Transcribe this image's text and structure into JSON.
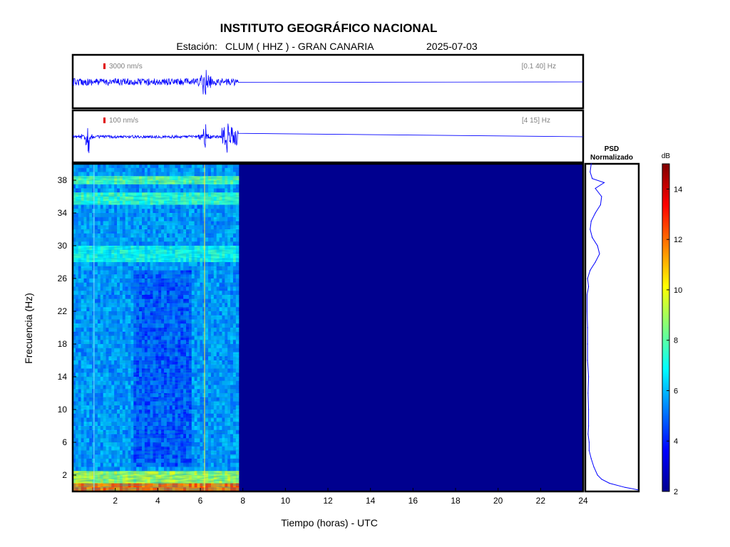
{
  "header": {
    "title": "INSTITUTO GEOGRÁFICO NACIONAL",
    "station_label": "Estación:",
    "station": "CLUM ( HHZ ) - GRAN CANARIA",
    "date": "2025-07-03"
  },
  "colors": {
    "trace": "#0000ff",
    "background_spectrogram": "#00008f",
    "scale_marker": "#e00000",
    "text": "#000000",
    "annotation_text": "#808080"
  },
  "chart_data": [
    {
      "type": "line",
      "id": "trace-broadband",
      "scale_label": "3000 nm/s",
      "filter_label": "[0.1 40] Hz",
      "xlim": [
        0,
        24
      ],
      "data_end_hour": 7.8,
      "events_hours": [
        6.2
      ],
      "amplitude_profile": "steady noise band with a spike near 6.2 h; flat after 7.8 h"
    },
    {
      "type": "line",
      "id": "trace-filtered",
      "scale_label": "100 nm/s",
      "filter_label": "[4 15] Hz",
      "xlim": [
        0,
        24
      ],
      "data_end_hour": 7.8,
      "events_hours": [
        0.7,
        6.2,
        7.3
      ],
      "amplitude_profile": "low noise with events near 0.7 h, 6.2 h and a burst 7.0–7.8 h; flat after 7.8 h"
    },
    {
      "type": "heatmap",
      "id": "spectrogram",
      "xlabel": "Tiempo (horas) - UTC",
      "ylabel": "Frecuencia  (Hz)",
      "xlim": [
        0,
        24
      ],
      "ylim": [
        0,
        40
      ],
      "x_ticks": [
        2,
        4,
        6,
        8,
        10,
        12,
        14,
        16,
        18,
        20,
        22,
        24
      ],
      "y_ticks": [
        2,
        6,
        10,
        14,
        18,
        22,
        26,
        30,
        34,
        38
      ],
      "data_end_hour": 7.8,
      "colormap": "jet",
      "color_range_db": [
        2,
        15
      ],
      "description_of_energy_db": [
        {
          "freq_range_hz": [
            0,
            1.2
          ],
          "db": 12
        },
        {
          "freq_range_hz": [
            1.2,
            2.5
          ],
          "db": 9
        },
        {
          "freq_range_hz": [
            2.5,
            40
          ],
          "db": 5.5
        },
        {
          "freq_range_hz": [
            28,
            30
          ],
          "db": 7
        },
        {
          "freq_range_hz": [
            35,
            36.5
          ],
          "db": 7.5
        },
        {
          "freq_range_hz": [
            37.5,
            38.5
          ],
          "db": 8
        }
      ],
      "vertical_lines_hours": [
        1.0,
        6.2
      ]
    },
    {
      "type": "line",
      "id": "psd-normalized",
      "title": "PSD",
      "subtitle": "Normalizado",
      "ylim": [
        0,
        40
      ],
      "points": [
        {
          "hz": 0.2,
          "v": 1.0
        },
        {
          "hz": 0.5,
          "v": 0.75
        },
        {
          "hz": 1.0,
          "v": 0.45
        },
        {
          "hz": 1.5,
          "v": 0.3
        },
        {
          "hz": 2,
          "v": 0.22
        },
        {
          "hz": 3,
          "v": 0.15
        },
        {
          "hz": 4,
          "v": 0.1
        },
        {
          "hz": 5,
          "v": 0.06
        },
        {
          "hz": 6,
          "v": 0.06
        },
        {
          "hz": 7,
          "v": 0.04
        },
        {
          "hz": 8,
          "v": 0.05
        },
        {
          "hz": 10,
          "v": 0.05
        },
        {
          "hz": 12,
          "v": 0.04
        },
        {
          "hz": 14,
          "v": 0.05
        },
        {
          "hz": 16,
          "v": 0.03
        },
        {
          "hz": 18,
          "v": 0.03
        },
        {
          "hz": 20,
          "v": 0.03
        },
        {
          "hz": 22,
          "v": 0.02
        },
        {
          "hz": 24,
          "v": 0.02
        },
        {
          "hz": 25,
          "v": 0.05
        },
        {
          "hz": 26,
          "v": 0.03
        },
        {
          "hz": 27,
          "v": 0.08
        },
        {
          "hz": 28,
          "v": 0.18
        },
        {
          "hz": 29,
          "v": 0.26
        },
        {
          "hz": 30,
          "v": 0.22
        },
        {
          "hz": 31,
          "v": 0.12
        },
        {
          "hz": 32,
          "v": 0.08
        },
        {
          "hz": 33,
          "v": 0.1
        },
        {
          "hz": 34,
          "v": 0.18
        },
        {
          "hz": 35,
          "v": 0.28
        },
        {
          "hz": 36,
          "v": 0.3
        },
        {
          "hz": 37,
          "v": 0.18
        },
        {
          "hz": 37.7,
          "v": 0.35
        },
        {
          "hz": 38.2,
          "v": 0.12
        },
        {
          "hz": 39,
          "v": 0.08
        },
        {
          "hz": 40,
          "v": 0.1
        }
      ]
    },
    {
      "type": "colorbar",
      "id": "colorbar",
      "unit": "dB",
      "range": [
        2,
        15
      ],
      "ticks": [
        2,
        4,
        6,
        8,
        10,
        12,
        14
      ]
    }
  ]
}
